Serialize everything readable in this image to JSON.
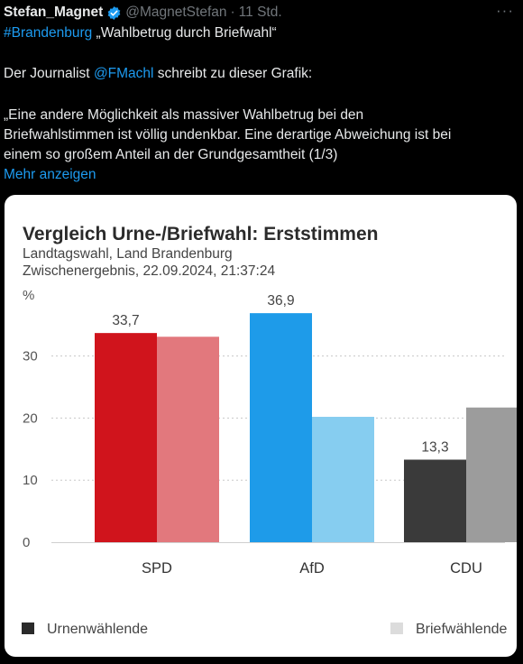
{
  "tweet": {
    "author_name": "Stefan_Magnet",
    "handle": "@MagnetStefan",
    "separator": "·",
    "time": "11 Std.",
    "more_glyph": "···",
    "line1_hashtag": "#Brandenburg",
    "line1_rest": " „Wahlbetrug durch Briefwahl“",
    "line2_pre": "Der Journalist ",
    "line2_mention": "@FMachl",
    "line2_post": " schreibt zu dieser Grafik:",
    "line3": "„Eine andere Möglichkeit als massiver Wahlbetrug bei den",
    "line4": "Briefwahlstimmen ist völlig undenkbar. Eine derartige Abweichung ist bei",
    "line5": "einem so großem Anteil an der Grundgesamtheit (1/3)",
    "show_more": "Mehr anzeigen"
  },
  "colors": {
    "link": "#1d9bf0",
    "muted": "#71767b",
    "SPD_urne": "#d0141c",
    "SPD_brief": "#e2787d",
    "AfD_urne": "#1e9be9",
    "AfD_brief": "#86cdf0",
    "CDU_urne": "#3a3a3a",
    "CDU_brief": "#9c9c9c"
  },
  "chart_data": {
    "type": "bar",
    "title": "Vergleich Urne-/Briefwahl: Erststimmen",
    "subtitle_line1": "Landtagswahl, Land Brandenburg",
    "subtitle_line2": "Zwischenergebnis, 22.09.2024, 21:37:24",
    "ylabel": "%",
    "ylim": [
      0,
      40
    ],
    "yticks": [
      0,
      10,
      20,
      30
    ],
    "grid": true,
    "legend_position": "bottom",
    "categories": [
      "SPD",
      "AfD",
      "CDU"
    ],
    "series": [
      {
        "name": "Urnenwählende",
        "values": [
          33.7,
          36.9,
          13.3
        ],
        "data_labels": [
          "33,7",
          "36,9",
          "13,3"
        ]
      },
      {
        "name": "Briefwählende",
        "values": [
          33.1,
          20.2,
          21.7
        ]
      }
    ]
  }
}
